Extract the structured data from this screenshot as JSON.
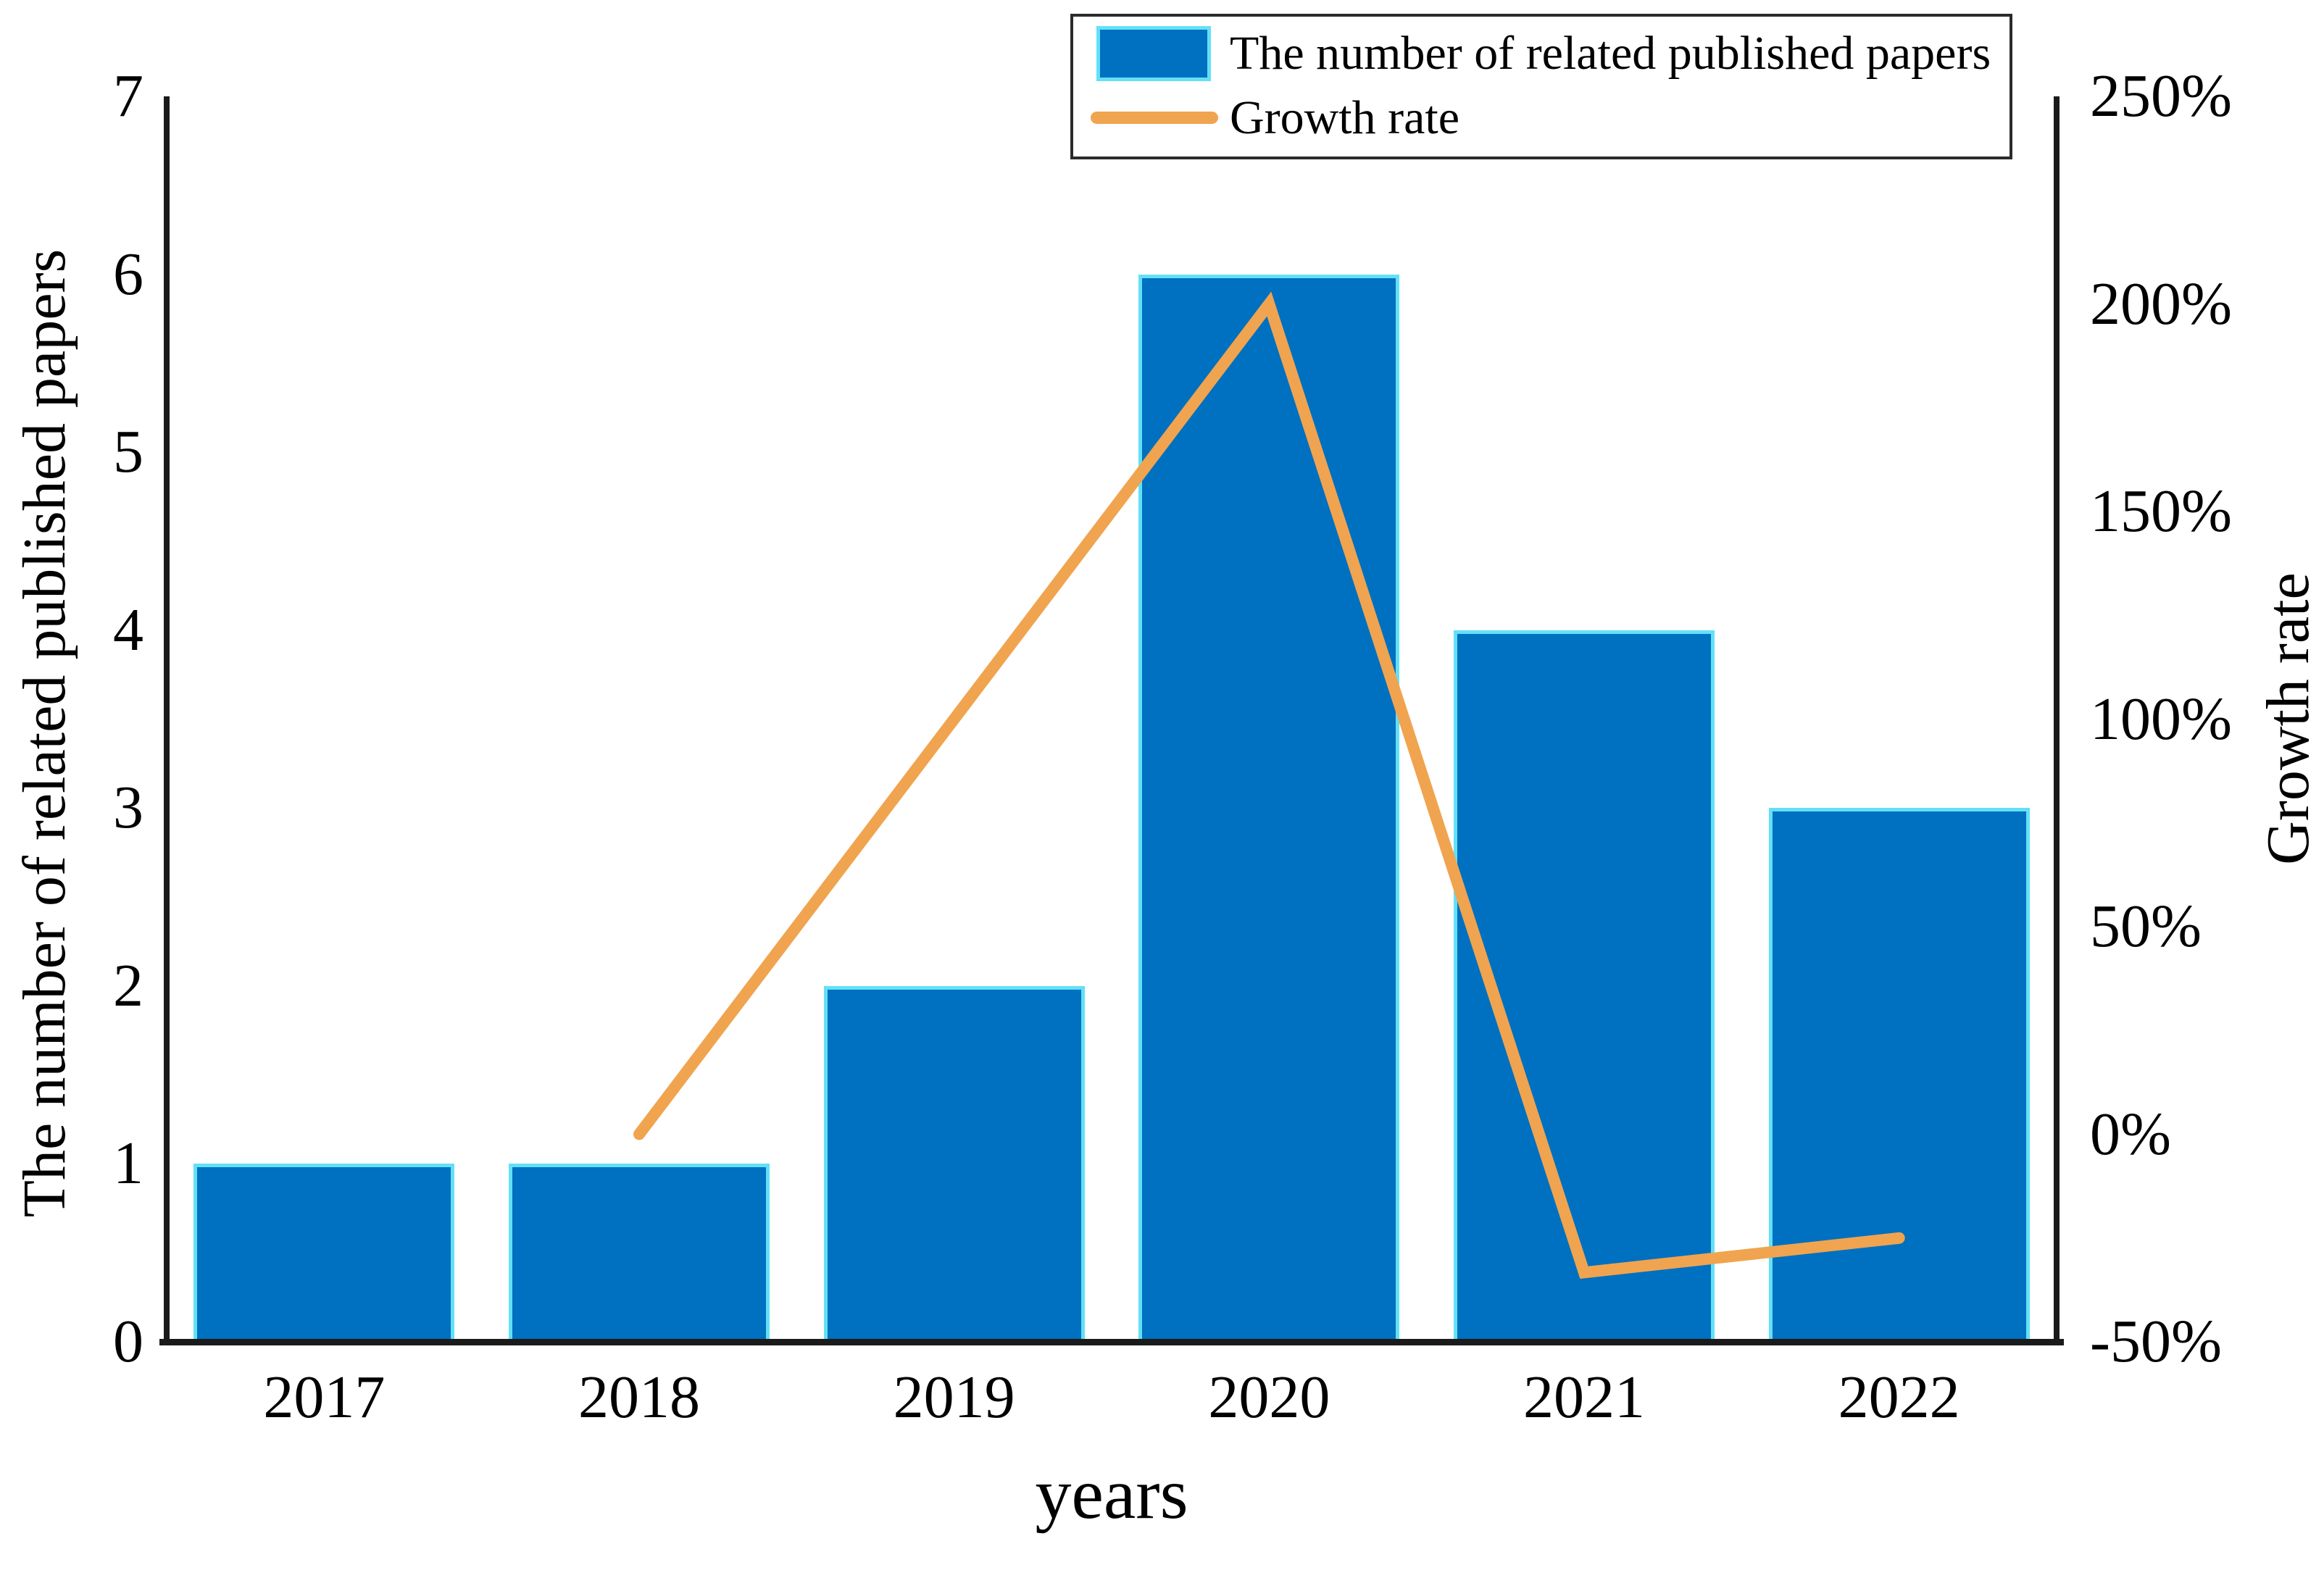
{
  "figure": {
    "background": "#ffffff"
  },
  "legend": {
    "position": "top",
    "items": [
      {
        "swatch": "bar-swatch",
        "label": "The number of related published papers"
      },
      {
        "swatch": "line-swatch",
        "label": "Growth rate"
      }
    ]
  },
  "axes": {
    "left": {
      "title": "The number of related published papers",
      "ticks": [
        {
          "label": "0",
          "value": 0
        },
        {
          "label": "1",
          "value": 1
        },
        {
          "label": "2",
          "value": 2
        },
        {
          "label": "3",
          "value": 3
        },
        {
          "label": "4",
          "value": 4
        },
        {
          "label": "5",
          "value": 5
        },
        {
          "label": "6",
          "value": 6
        },
        {
          "label": "7",
          "value": 7
        }
      ]
    },
    "right": {
      "title": "Growth rate",
      "ticks": [
        {
          "label": "-50%",
          "value": -50
        },
        {
          "label": "0%",
          "value": 0
        },
        {
          "label": "50%",
          "value": 50
        },
        {
          "label": "100%",
          "value": 100
        },
        {
          "label": "150%",
          "value": 150
        },
        {
          "label": "200%",
          "value": 200
        },
        {
          "label": "250%",
          "value": 250
        }
      ]
    },
    "x": {
      "title": "years"
    }
  },
  "chart_data": {
    "type": "bar",
    "combo": "bar+line",
    "title": "",
    "categories": [
      "2017",
      "2018",
      "2019",
      "2020",
      "2021",
      "2022"
    ],
    "series": [
      {
        "name": "The number of related published papers",
        "type": "bar",
        "yaxis": "left",
        "values": [
          1,
          1,
          2,
          6,
          4,
          3
        ]
      },
      {
        "name": "Growth rate",
        "type": "line",
        "yaxis": "right",
        "values_percent": [
          null,
          0,
          100,
          200,
          -33.3,
          -25
        ]
      }
    ],
    "left_axis": {
      "label": "The number of related published papers",
      "range": [
        0,
        7
      ],
      "tick_step": 1
    },
    "right_axis": {
      "label": "Growth rate",
      "range_percent": [
        -50,
        250
      ],
      "tick_step_percent": 50,
      "tick_format": "percent"
    },
    "x_axis": {
      "label": "years"
    },
    "legend_position": "top",
    "grid": false
  },
  "colors": {
    "bar_fill": "#0070c0",
    "bar_edge": "#63e0f7",
    "line": "#f0a44f",
    "axis": "#1a1a1a",
    "text": "#000000",
    "legend_border": "#2b2b2b",
    "background": "#ffffff"
  }
}
